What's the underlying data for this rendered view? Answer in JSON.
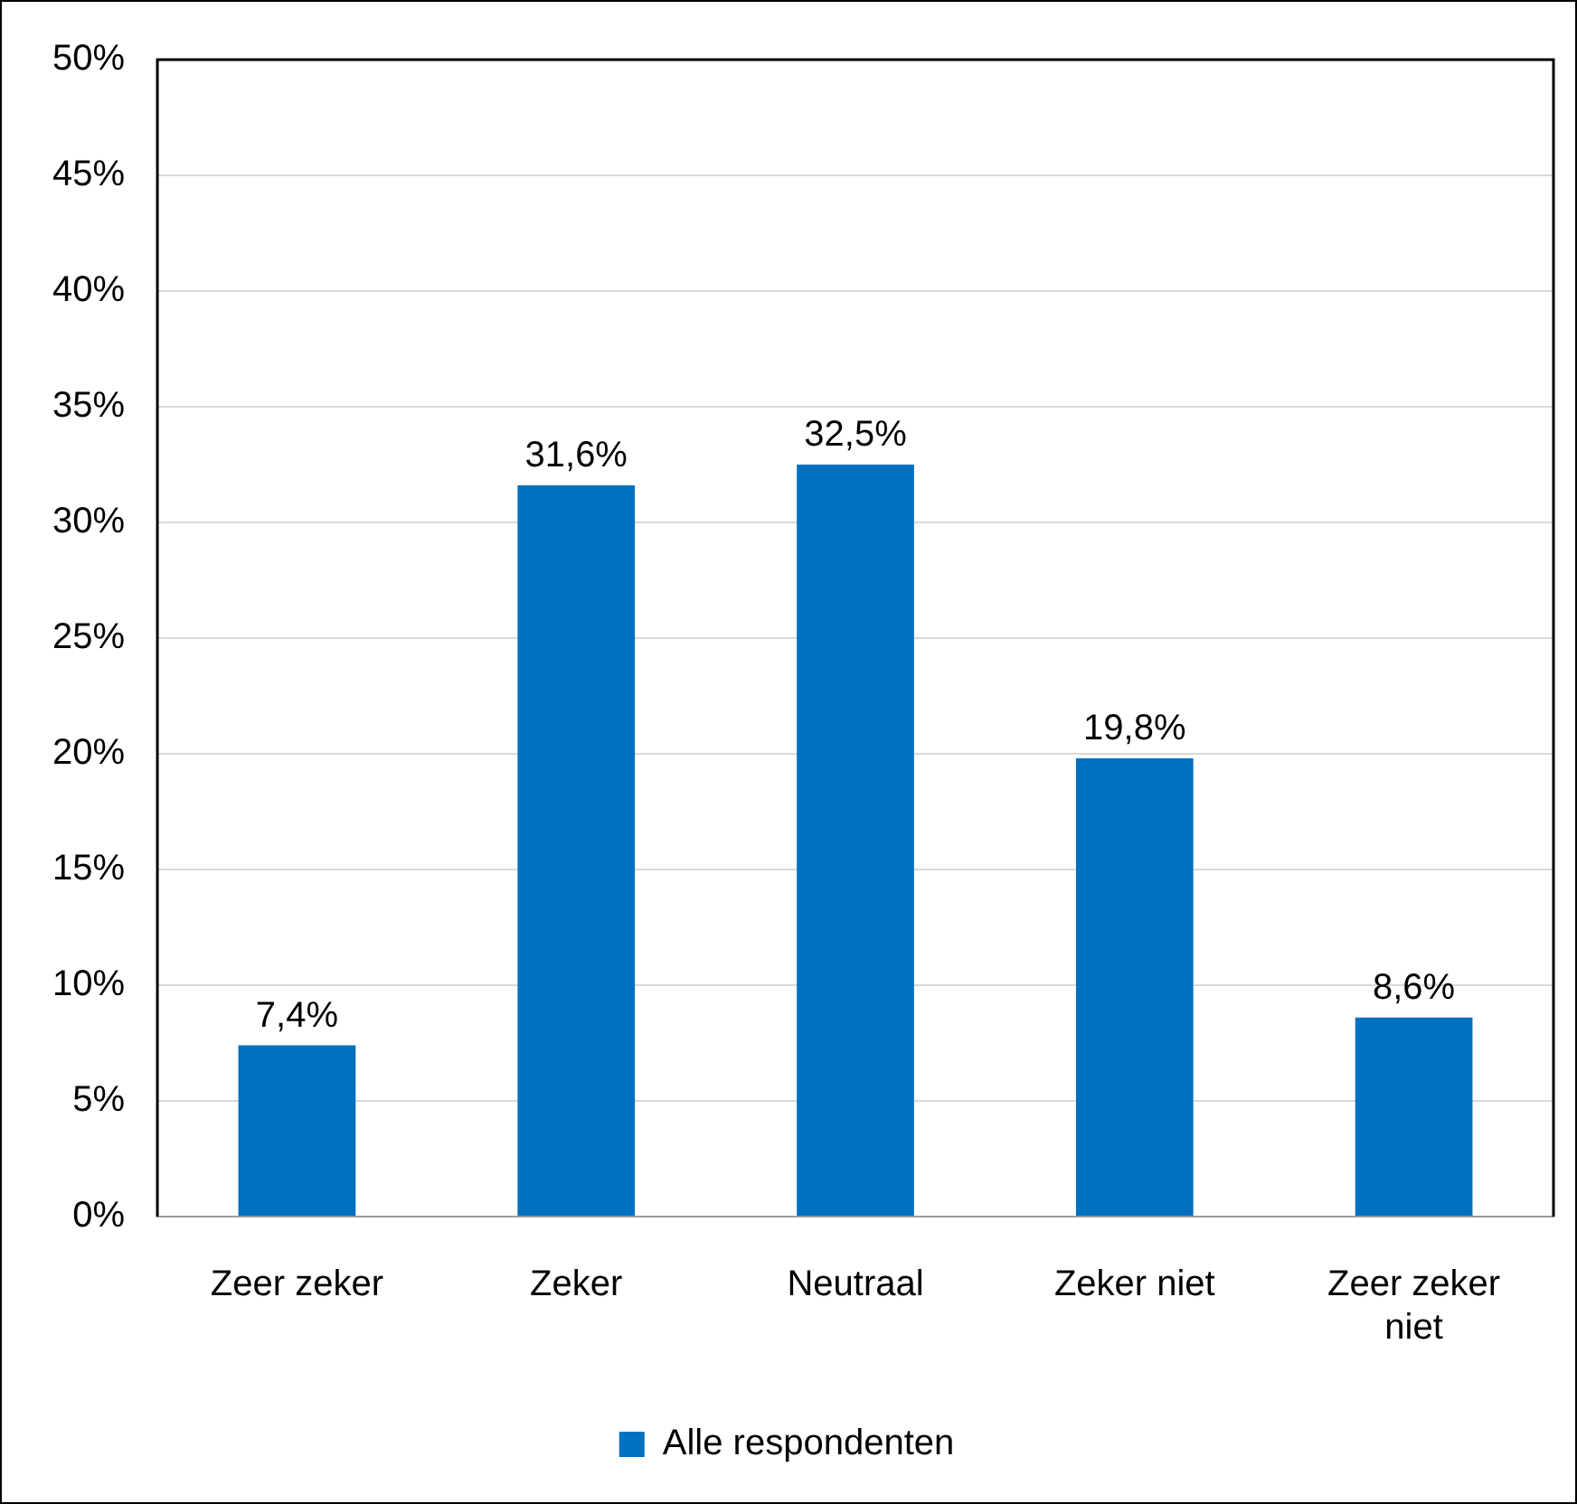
{
  "chart_data": {
    "type": "bar",
    "categories": [
      "Zeer zeker",
      "Zeker",
      "Neutraal",
      "Zeker niet",
      "Zeer zeker niet"
    ],
    "series": [
      {
        "name": "Alle respondenten",
        "color": "#0070c0",
        "values": [
          7.4,
          31.6,
          32.5,
          19.8,
          8.6
        ],
        "value_labels": [
          "7,4%",
          "31,6%",
          "32,5%",
          "19,8%",
          "8,6%"
        ]
      }
    ],
    "ylim": [
      0,
      50
    ],
    "yticks": [
      {
        "value": 0,
        "label": "0%"
      },
      {
        "value": 5,
        "label": "5%"
      },
      {
        "value": 10,
        "label": "10%"
      },
      {
        "value": 15,
        "label": "15%"
      },
      {
        "value": 20,
        "label": "20%"
      },
      {
        "value": 25,
        "label": "25%"
      },
      {
        "value": 30,
        "label": "30%"
      },
      {
        "value": 35,
        "label": "35%"
      },
      {
        "value": 40,
        "label": "40%"
      },
      {
        "value": 45,
        "label": "45%"
      },
      {
        "value": 50,
        "label": "50%"
      }
    ],
    "grid": "y",
    "legend": "bottom"
  }
}
